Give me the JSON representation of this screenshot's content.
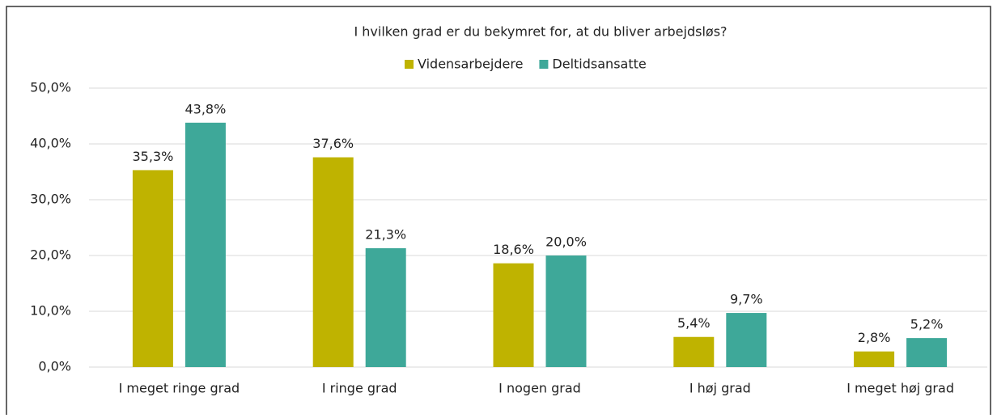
{
  "chart_data": {
    "type": "bar",
    "title": "I hvilken grad er du bekymret for, at du bliver arbejdsløs?",
    "categories": [
      "I meget ringe grad",
      "I ringe grad",
      "I nogen grad",
      "I høj grad",
      "I meget høj grad"
    ],
    "series": [
      {
        "name": "Vidensarbejdere",
        "color": "#bfb300",
        "values": [
          35.3,
          37.6,
          18.6,
          5.4,
          2.8
        ],
        "value_labels": [
          "35,3%",
          "37,6%",
          "18,6%",
          "5,4%",
          "2,8%"
        ]
      },
      {
        "name": "Deltidsansatte",
        "color": "#3ea899",
        "values": [
          43.8,
          21.3,
          20.0,
          9.7,
          5.2
        ],
        "value_labels": [
          "43,8%",
          "21,3%",
          "20,0%",
          "9,7%",
          "5,2%"
        ]
      }
    ],
    "ylim": [
      0,
      50
    ],
    "yticks": [
      {
        "value": 0,
        "label": "0,0%"
      },
      {
        "value": 10,
        "label": "10,0%"
      },
      {
        "value": 20,
        "label": "20,0%"
      },
      {
        "value": 30,
        "label": "30,0%"
      },
      {
        "value": 40,
        "label": "40,0%"
      },
      {
        "value": 50,
        "label": "50,0%"
      }
    ],
    "legend": "top"
  }
}
